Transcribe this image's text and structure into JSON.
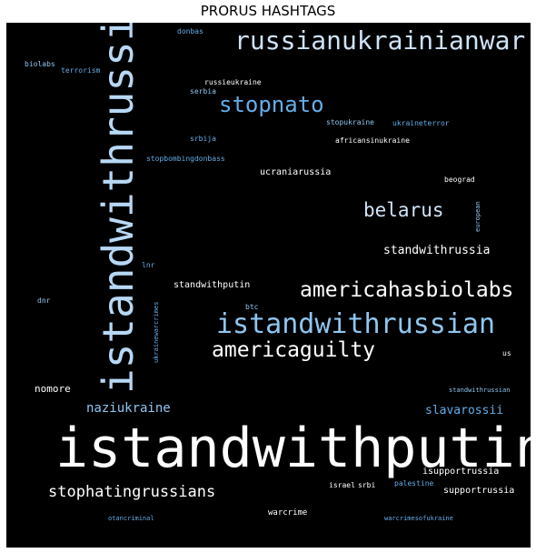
{
  "title": "PRORUS HASHTAGS",
  "colors": {
    "white": "#ffffff",
    "pale": "#cfe3f7",
    "light": "#b7d8f5",
    "mid": "#8ec6f0",
    "blue": "#64aee8"
  },
  "words": [
    {
      "text": "istandwithputin",
      "color": "#ffffff"
    },
    {
      "text": "istandwithrussia",
      "color": "#b7d8f5"
    },
    {
      "text": "russianukrainianwar",
      "color": "#cfe3f7"
    },
    {
      "text": "istandwithrussian",
      "color": "#8ec6f0"
    },
    {
      "text": "americahasbiolabs",
      "color": "#ffffff"
    },
    {
      "text": "americaguilty",
      "color": "#ffffff"
    },
    {
      "text": "stopnato",
      "color": "#64aee8"
    },
    {
      "text": "belarus",
      "color": "#cfe3f7"
    },
    {
      "text": "stophatingrussians",
      "color": "#ffffff"
    },
    {
      "text": "standwithrussia",
      "color": "#ffffff"
    },
    {
      "text": "naziukraine",
      "color": "#8ec6f0"
    },
    {
      "text": "slavarossii",
      "color": "#64aee8"
    },
    {
      "text": "nomore",
      "color": "#ffffff"
    },
    {
      "text": "standwithputin",
      "color": "#ffffff"
    },
    {
      "text": "ucraniarussia",
      "color": "#ffffff"
    },
    {
      "text": "supportrussia",
      "color": "#ffffff"
    },
    {
      "text": "isupportrussia",
      "color": "#ffffff"
    },
    {
      "text": "warcrime",
      "color": "#ffffff"
    },
    {
      "text": "donbas",
      "color": "#64aee8"
    },
    {
      "text": "biolabs",
      "color": "#8ec6f0"
    },
    {
      "text": "terrorism",
      "color": "#64aee8"
    },
    {
      "text": "russieukraine",
      "color": "#ffffff"
    },
    {
      "text": "serbia",
      "color": "#8ec6f0"
    },
    {
      "text": "stopukraine",
      "color": "#8ec6f0"
    },
    {
      "text": "ukraineterror",
      "color": "#64aee8"
    },
    {
      "text": "srbija",
      "color": "#64aee8"
    },
    {
      "text": "africansinukraine",
      "color": "#ffffff"
    },
    {
      "text": "stopbombingdonbass",
      "color": "#64aee8"
    },
    {
      "text": "beograd",
      "color": "#ffffff"
    },
    {
      "text": "european",
      "color": "#8ec6f0"
    },
    {
      "text": "lnr",
      "color": "#64aee8"
    },
    {
      "text": "dnr",
      "color": "#8ec6f0"
    },
    {
      "text": "btc",
      "color": "#8ec6f0"
    },
    {
      "text": "ukrainewarcrimes",
      "color": "#64aee8"
    },
    {
      "text": "us",
      "color": "#ffffff"
    },
    {
      "text": "standwithrussian",
      "color": "#8ec6f0"
    },
    {
      "text": "israel",
      "color": "#ffffff"
    },
    {
      "text": "srbi",
      "color": "#ffffff"
    },
    {
      "text": "palestine",
      "color": "#64aee8"
    },
    {
      "text": "otancriminal",
      "color": "#64aee8"
    },
    {
      "text": "warcrimesofukraine",
      "color": "#64aee8"
    }
  ]
}
